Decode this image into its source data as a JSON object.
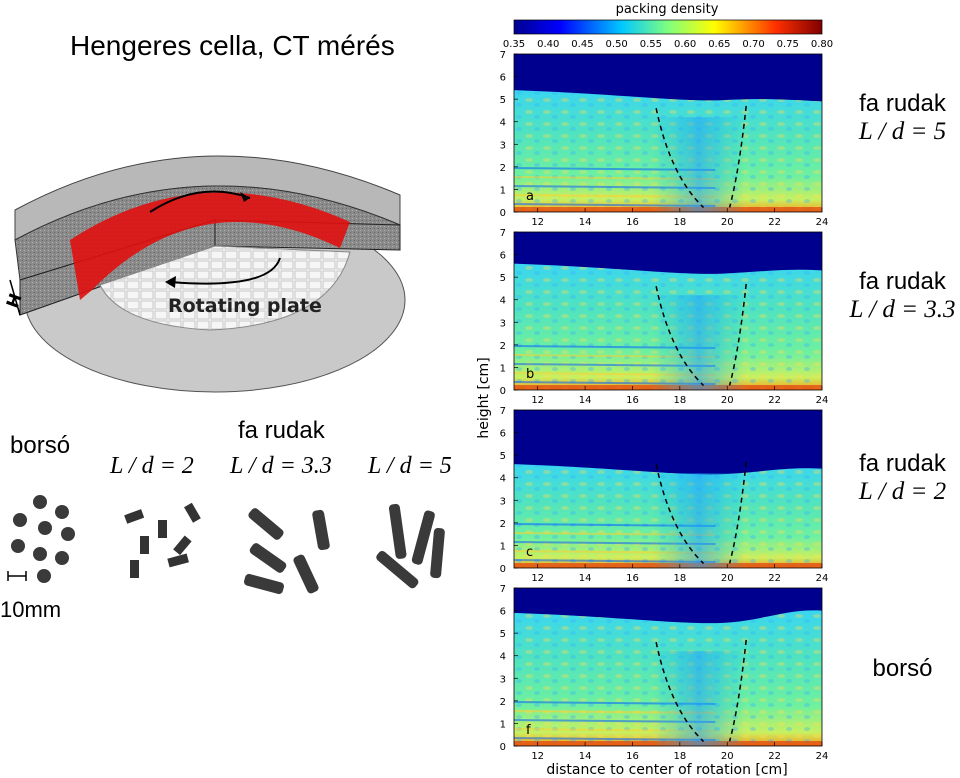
{
  "title": "Hengeres cella, CT mérés",
  "apparatus": {
    "height_label": "H",
    "plate_label": "Rotating plate"
  },
  "samples": {
    "borso_label": "borsó",
    "rods_label": "fa rudak",
    "ld2": "L / d = 2",
    "ld33": "L / d = 3.3",
    "ld5": "L / d = 5",
    "scale_label": "10mm"
  },
  "colorbar": {
    "title": "packing density",
    "ticks": [
      "0.35",
      "0.40",
      "0.45",
      "0.50",
      "0.55",
      "0.60",
      "0.65",
      "0.70",
      "0.75",
      "0.80"
    ]
  },
  "axes": {
    "ylabel": "height [cm]",
    "xlabel": "distance to center of rotation [cm]",
    "xticks": [
      "12",
      "14",
      "16",
      "18",
      "20",
      "22",
      "24"
    ],
    "yticks": [
      "0",
      "1",
      "2",
      "3",
      "4",
      "5",
      "6",
      "7"
    ]
  },
  "panels": [
    {
      "letter": "a",
      "material": "fa rudak",
      "ratio": "L / d = 5",
      "surface": [
        5.4,
        4.9
      ]
    },
    {
      "letter": "b",
      "material": "fa rudak",
      "ratio": "L / d = 3.3",
      "surface": [
        5.6,
        5.3
      ]
    },
    {
      "letter": "c",
      "material": "fa rudak",
      "ratio": "L / d = 2",
      "surface": [
        4.6,
        4.4
      ]
    },
    {
      "letter": "f",
      "material": "borsó",
      "ratio": "",
      "surface": [
        5.9,
        6.0
      ]
    }
  ],
  "colors": {
    "background": "#ffffff",
    "rim": "#777777",
    "red_zone": "#e01010",
    "plate": "#f4f4f4",
    "pellet": "#333333"
  }
}
